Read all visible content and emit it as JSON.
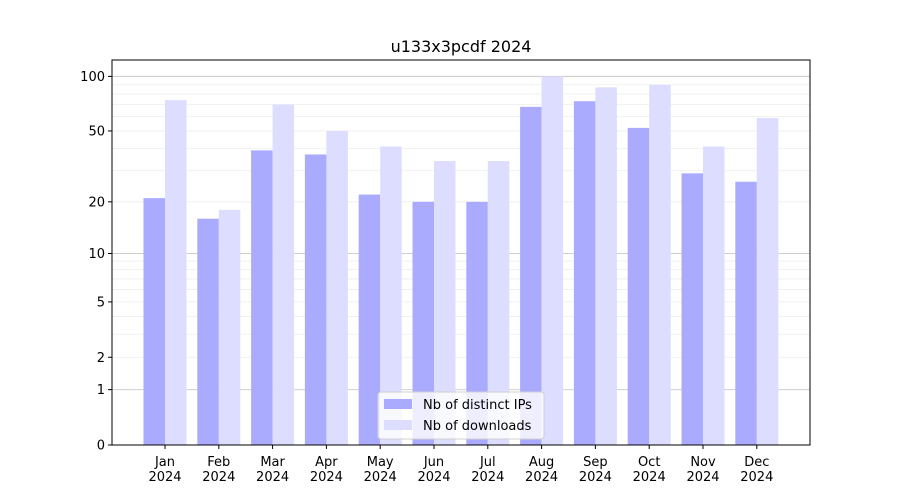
{
  "chart_data": {
    "type": "bar",
    "title": "u133x3pcdf 2024",
    "xlabel": "",
    "ylabel": "",
    "yscale": "symlog",
    "ylim": [
      0,
      123
    ],
    "yticks": [
      0,
      1,
      2,
      5,
      10,
      20,
      50,
      100
    ],
    "grid": true,
    "legend_position": "lower-center",
    "categories": [
      "Jan\n2024",
      "Feb\n2024",
      "Mar\n2024",
      "Apr\n2024",
      "May\n2024",
      "Jun\n2024",
      "Jul\n2024",
      "Aug\n2024",
      "Sep\n2024",
      "Oct\n2024",
      "Nov\n2024",
      "Dec\n2024"
    ],
    "series": [
      {
        "name": "Nb of distinct IPs",
        "color": "#aaaaff",
        "values": [
          21,
          16,
          39,
          37,
          22,
          20,
          20,
          68,
          73,
          52,
          29,
          26
        ]
      },
      {
        "name": "Nb of downloads",
        "color": "#ddddff",
        "values": [
          74,
          18,
          70,
          50,
          41,
          34,
          34,
          100,
          87,
          90,
          41,
          59
        ]
      }
    ]
  }
}
